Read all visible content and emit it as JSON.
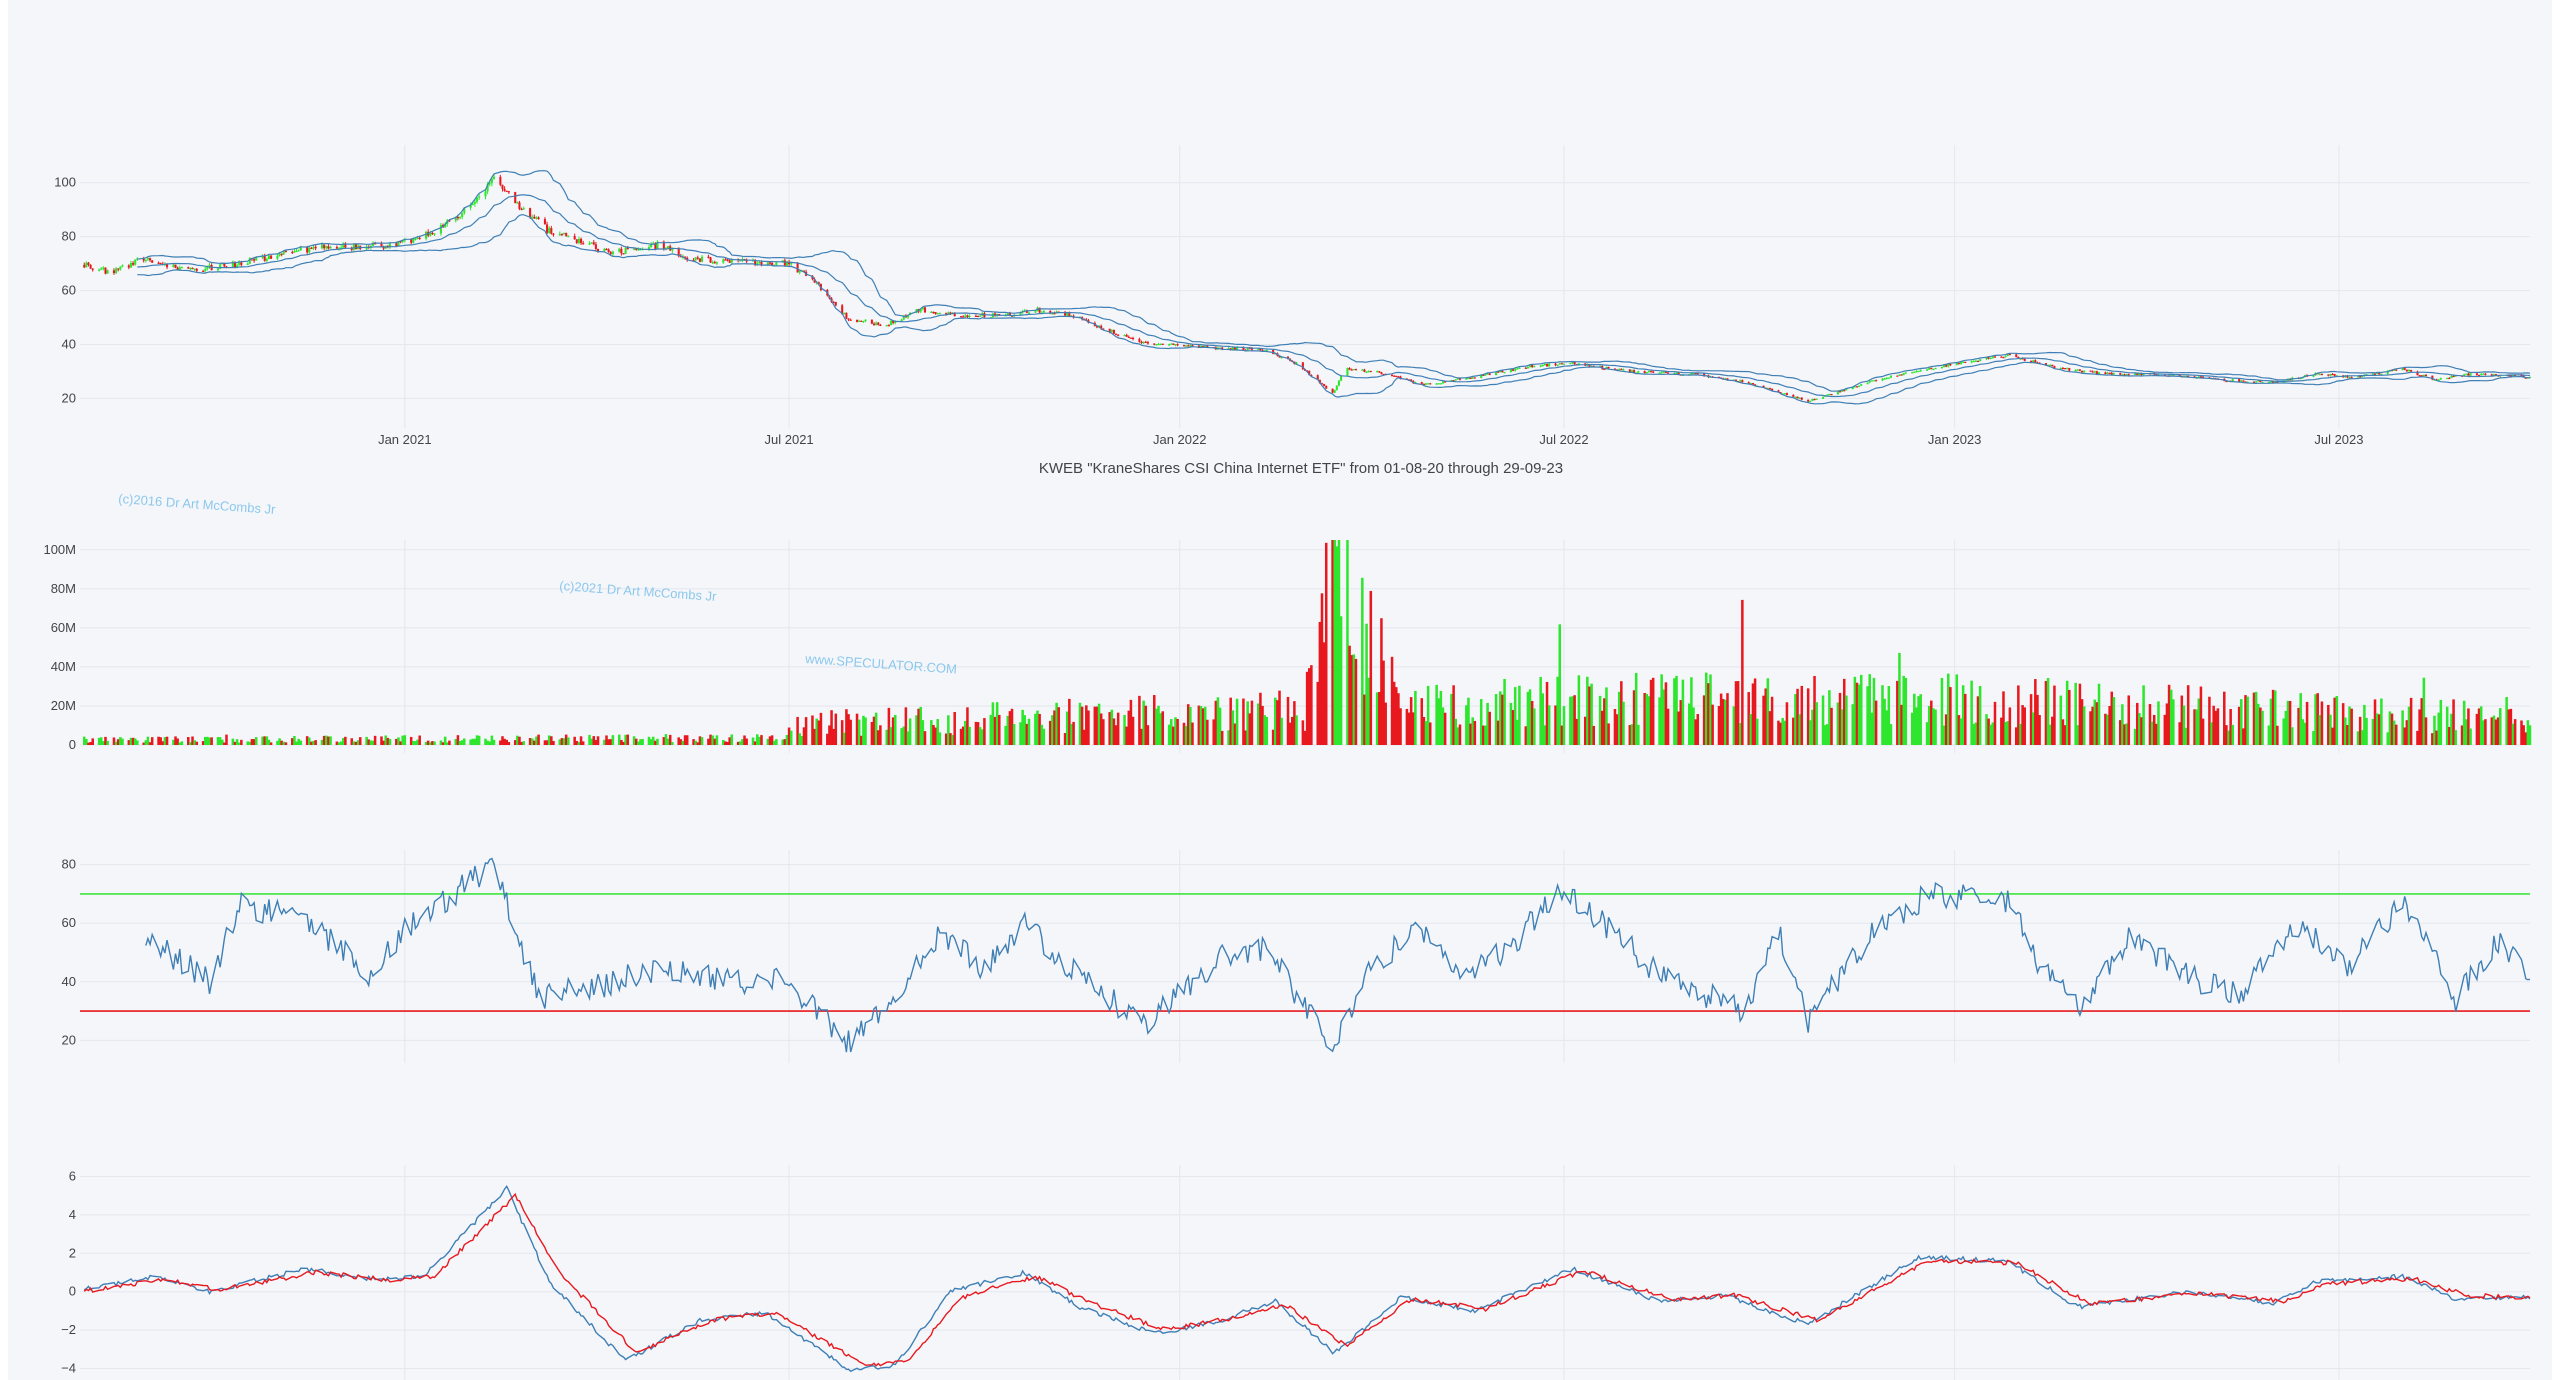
{
  "chart_data": [
    {
      "type": "candlestick",
      "panel": "price",
      "title": "KWEB \"KraneShares CSI China Internet ETF\" from 01-08-20 through 29-09-23",
      "x_range": [
        "2020-08-01",
        "2023-09-29"
      ],
      "ylim": [
        12,
        114
      ],
      "y_ticks": [
        20,
        40,
        60,
        80,
        100
      ],
      "x_ticks": [
        {
          "date": "2021-01-01",
          "label": "Jan 2021"
        },
        {
          "date": "2021-07-01",
          "label": "Jul 2021"
        },
        {
          "date": "2022-01-01",
          "label": "Jan 2022"
        },
        {
          "date": "2022-07-01",
          "label": "Jul 2022"
        },
        {
          "date": "2023-01-01",
          "label": "Jan 2023"
        },
        {
          "date": "2023-07-01",
          "label": "Jul 2023"
        }
      ],
      "approx_close_path": [
        [
          "2020-08-01",
          70
        ],
        [
          "2020-08-15",
          67
        ],
        [
          "2020-09-01",
          72
        ],
        [
          "2020-09-20",
          67
        ],
        [
          "2020-10-15",
          70
        ],
        [
          "2020-11-05",
          74
        ],
        [
          "2020-11-20",
          76
        ],
        [
          "2020-12-15",
          76
        ],
        [
          "2021-01-01",
          78
        ],
        [
          "2021-01-20",
          84
        ],
        [
          "2021-02-01",
          92
        ],
        [
          "2021-02-12",
          101
        ],
        [
          "2021-02-25",
          90
        ],
        [
          "2021-03-10",
          82
        ],
        [
          "2021-03-25",
          78
        ],
        [
          "2021-04-10",
          74
        ],
        [
          "2021-05-01",
          77
        ],
        [
          "2021-05-15",
          72
        ],
        [
          "2021-06-01",
          71
        ],
        [
          "2021-07-01",
          70
        ],
        [
          "2021-07-15",
          62
        ],
        [
          "2021-07-28",
          50
        ],
        [
          "2021-08-15",
          47
        ],
        [
          "2021-09-01",
          53
        ],
        [
          "2021-09-20",
          51
        ],
        [
          "2021-10-10",
          51
        ],
        [
          "2021-10-25",
          53
        ],
        [
          "2021-11-15",
          50
        ],
        [
          "2021-12-05",
          43
        ],
        [
          "2021-12-20",
          40
        ],
        [
          "2022-01-15",
          39
        ],
        [
          "2022-02-10",
          38
        ],
        [
          "2022-02-25",
          33
        ],
        [
          "2022-03-14",
          22
        ],
        [
          "2022-03-20",
          31
        ],
        [
          "2022-04-10",
          29
        ],
        [
          "2022-04-25",
          25
        ],
        [
          "2022-05-20",
          28
        ],
        [
          "2022-06-15",
          32
        ],
        [
          "2022-07-05",
          33
        ],
        [
          "2022-08-01",
          30
        ],
        [
          "2022-09-01",
          29
        ],
        [
          "2022-09-25",
          26
        ],
        [
          "2022-10-24",
          19
        ],
        [
          "2022-11-05",
          22
        ],
        [
          "2022-11-30",
          28
        ],
        [
          "2022-12-20",
          31
        ],
        [
          "2023-01-26",
          36
        ],
        [
          "2023-02-20",
          31
        ],
        [
          "2023-03-15",
          29
        ],
        [
          "2023-04-10",
          29
        ],
        [
          "2023-05-05",
          27
        ],
        [
          "2023-05-31",
          26
        ],
        [
          "2023-06-20",
          29
        ],
        [
          "2023-07-10",
          28
        ],
        [
          "2023-07-31",
          31
        ],
        [
          "2023-08-15",
          27
        ],
        [
          "2023-09-01",
          29
        ],
        [
          "2023-09-29",
          28
        ]
      ],
      "overlays": [
        "bollinger-upper",
        "bollinger-middle",
        "bollinger-lower"
      ],
      "candle_colors": {
        "up": "#2ee62e",
        "down": "#e8191e"
      },
      "band_color": "#3f7fb5"
    },
    {
      "type": "bar",
      "panel": "volume",
      "ylim": [
        0,
        105000000
      ],
      "y_ticks": [
        {
          "value": 0,
          "label": "0"
        },
        {
          "value": 20000000,
          "label": "20M"
        },
        {
          "value": 40000000,
          "label": "40M"
        },
        {
          "value": 60000000,
          "label": "60M"
        },
        {
          "value": 80000000,
          "label": "80M"
        },
        {
          "value": 100000000,
          "label": "100M"
        }
      ],
      "approx_volume_level": [
        [
          "2020-08-01",
          3000000
        ],
        [
          "2021-06-20",
          4000000
        ],
        [
          "2021-07-10",
          12000000
        ],
        [
          "2021-09-01",
          14000000
        ],
        [
          "2022-03-01",
          20000000
        ],
        [
          "2022-03-15",
          102000000
        ],
        [
          "2022-04-15",
          22000000
        ],
        [
          "2022-10-25",
          28000000
        ],
        [
          "2023-09-29",
          15000000
        ]
      ],
      "bar_colors": {
        "up": "#2ee62e",
        "down": "#e8191e"
      }
    },
    {
      "type": "line",
      "panel": "rsi",
      "ylim": [
        15,
        85
      ],
      "y_ticks": [
        20,
        40,
        60,
        80
      ],
      "hlines": [
        {
          "value": 70,
          "color": "#3ee63e"
        },
        {
          "value": 30,
          "color": "#e8191e"
        }
      ],
      "approx_path": [
        [
          "2020-09-01",
          55
        ],
        [
          "2020-10-01",
          40
        ],
        [
          "2020-10-15",
          66
        ],
        [
          "2020-11-15",
          62
        ],
        [
          "2020-12-15",
          42
        ],
        [
          "2021-01-01",
          58
        ],
        [
          "2021-02-12",
          80
        ],
        [
          "2021-03-05",
          35
        ],
        [
          "2021-04-01",
          38
        ],
        [
          "2021-05-01",
          45
        ],
        [
          "2021-06-01",
          40
        ],
        [
          "2021-07-01",
          40
        ],
        [
          "2021-07-28",
          19
        ],
        [
          "2021-08-15",
          30
        ],
        [
          "2021-09-10",
          57
        ],
        [
          "2021-10-01",
          44
        ],
        [
          "2021-10-20",
          60
        ],
        [
          "2021-11-15",
          42
        ],
        [
          "2021-12-15",
          25
        ],
        [
          "2022-01-20",
          48
        ],
        [
          "2022-02-10",
          52
        ],
        [
          "2022-03-14",
          18
        ],
        [
          "2022-04-01",
          45
        ],
        [
          "2022-04-25",
          58
        ],
        [
          "2022-05-15",
          40
        ],
        [
          "2022-06-10",
          55
        ],
        [
          "2022-06-28",
          72
        ],
        [
          "2022-07-20",
          60
        ],
        [
          "2022-08-15",
          42
        ],
        [
          "2022-09-25",
          30
        ],
        [
          "2022-10-10",
          58
        ],
        [
          "2022-10-24",
          27
        ],
        [
          "2022-11-25",
          58
        ],
        [
          "2022-12-20",
          70
        ],
        [
          "2023-01-26",
          68
        ],
        [
          "2023-02-10",
          45
        ],
        [
          "2023-03-01",
          30
        ],
        [
          "2023-03-25",
          56
        ],
        [
          "2023-04-20",
          42
        ],
        [
          "2023-05-15",
          35
        ],
        [
          "2023-06-10",
          60
        ],
        [
          "2023-07-05",
          45
        ],
        [
          "2023-08-01",
          68
        ],
        [
          "2023-08-25",
          34
        ],
        [
          "2023-09-15",
          55
        ],
        [
          "2023-09-29",
          40
        ]
      ],
      "line_color": "#3f7fb5"
    },
    {
      "type": "line",
      "panel": "macd",
      "ylim": [
        -4.6,
        6.6
      ],
      "y_ticks": [
        -4,
        -2,
        0,
        2,
        4,
        6
      ],
      "series": [
        {
          "color": "#3f7fb5",
          "approx_path": [
            [
              "2020-08-01",
              0.1
            ],
            [
              "2020-09-05",
              0.8
            ],
            [
              "2020-10-01",
              0.0
            ],
            [
              "2020-11-15",
              1.2
            ],
            [
              "2020-12-20",
              0.6
            ],
            [
              "2021-01-10",
              0.8
            ],
            [
              "2021-02-18",
              5.4
            ],
            [
              "2021-03-10",
              0.5
            ],
            [
              "2021-04-15",
              -3.6
            ],
            [
              "2021-05-20",
              -1.5
            ],
            [
              "2021-06-20",
              -1.1
            ],
            [
              "2021-07-30",
              -4.1
            ],
            [
              "2021-08-20",
              -3.8
            ],
            [
              "2021-09-15",
              0.0
            ],
            [
              "2021-10-20",
              1.0
            ],
            [
              "2021-11-15",
              -0.8
            ],
            [
              "2021-12-20",
              -2.2
            ],
            [
              "2022-01-20",
              -1.5
            ],
            [
              "2022-02-15",
              -0.5
            ],
            [
              "2022-03-15",
              -3.2
            ],
            [
              "2022-04-15",
              -0.3
            ],
            [
              "2022-05-20",
              -1.0
            ],
            [
              "2022-07-05",
              1.2
            ],
            [
              "2022-08-15",
              -0.5
            ],
            [
              "2022-09-15",
              -0.2
            ],
            [
              "2022-10-24",
              -1.7
            ],
            [
              "2022-12-15",
              1.8
            ],
            [
              "2023-01-26",
              1.6
            ],
            [
              "2023-02-28",
              -0.8
            ],
            [
              "2023-04-20",
              0.0
            ],
            [
              "2023-05-31",
              -0.6
            ],
            [
              "2023-06-20",
              0.5
            ],
            [
              "2023-07-31",
              0.8
            ],
            [
              "2023-08-25",
              -0.4
            ],
            [
              "2023-09-29",
              -0.3
            ]
          ]
        },
        {
          "color": "#e8191e",
          "approx_path": [
            [
              "2020-08-01",
              0.0
            ],
            [
              "2020-09-10",
              0.6
            ],
            [
              "2020-10-05",
              0.1
            ],
            [
              "2020-11-20",
              1.0
            ],
            [
              "2020-12-25",
              0.6
            ],
            [
              "2021-01-15",
              0.8
            ],
            [
              "2021-02-22",
              5.0
            ],
            [
              "2021-03-15",
              1.0
            ],
            [
              "2021-04-20",
              -3.2
            ],
            [
              "2021-05-25",
              -1.5
            ],
            [
              "2021-06-25",
              -1.1
            ],
            [
              "2021-08-05",
              -3.8
            ],
            [
              "2021-08-25",
              -3.7
            ],
            [
              "2021-09-20",
              -0.3
            ],
            [
              "2021-10-25",
              0.8
            ],
            [
              "2021-11-20",
              -0.6
            ],
            [
              "2021-12-25",
              -2.0
            ],
            [
              "2022-01-25",
              -1.4
            ],
            [
              "2022-02-20",
              -0.7
            ],
            [
              "2022-03-20",
              -2.8
            ],
            [
              "2022-04-20",
              -0.4
            ],
            [
              "2022-05-25",
              -0.9
            ],
            [
              "2022-07-10",
              1.1
            ],
            [
              "2022-08-20",
              -0.4
            ],
            [
              "2022-09-20",
              -0.2
            ],
            [
              "2022-10-28",
              -1.5
            ],
            [
              "2022-12-20",
              1.6
            ],
            [
              "2023-01-30",
              1.5
            ],
            [
              "2023-03-05",
              -0.6
            ],
            [
              "2023-04-25",
              -0.1
            ],
            [
              "2023-06-05",
              -0.5
            ],
            [
              "2023-06-25",
              0.4
            ],
            [
              "2023-08-05",
              0.7
            ],
            [
              "2023-08-30",
              -0.2
            ],
            [
              "2023-09-29",
              -0.3
            ]
          ]
        }
      ]
    }
  ],
  "watermarks": [
    "(c)2016 Dr Art McCombs Jr",
    "(c)2021 Dr Art McCombs Jr",
    "www.SPECULATOR.COM"
  ],
  "colors": {
    "background": "#f4f6fa",
    "grid": "#e3e7ee",
    "tick_text": "#444444",
    "watermark": "#8cc8ec"
  }
}
